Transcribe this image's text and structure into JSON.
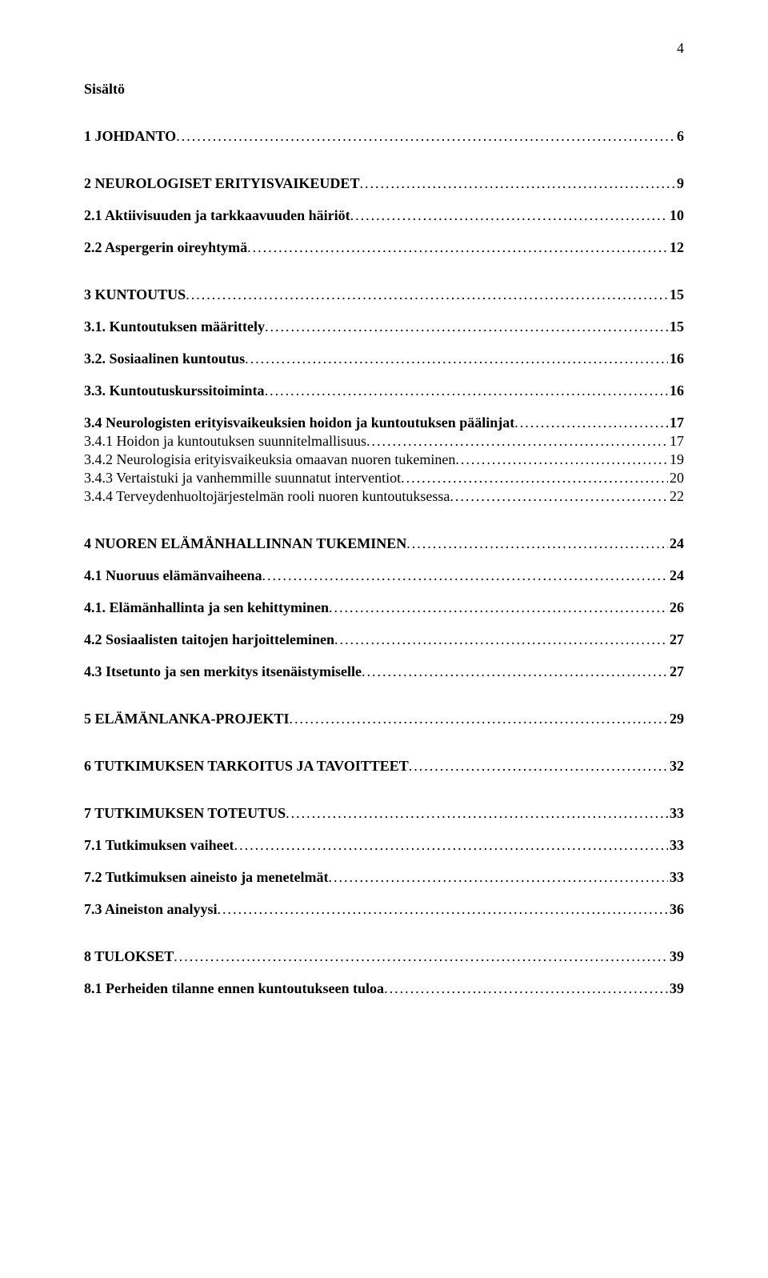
{
  "pageNumber": "4",
  "title": "Sisältö",
  "entries": [
    {
      "label": "1 JOHDANTO",
      "page": "6",
      "bold": true,
      "gap": "none",
      "level": 1
    },
    {
      "label": "2 NEUROLOGISET ERITYISVAIKEUDET",
      "page": "9",
      "bold": true,
      "gap": "large",
      "level": 1
    },
    {
      "label": "2.1 Aktiivisuuden ja tarkkaavuuden häiriöt",
      "page": "10",
      "bold": true,
      "gap": "med",
      "level": 2
    },
    {
      "label": "2.2 Aspergerin oireyhtymä",
      "page": "12",
      "bold": true,
      "gap": "med",
      "level": 2
    },
    {
      "label": "3 KUNTOUTUS",
      "page": "15",
      "bold": true,
      "gap": "large",
      "level": 1
    },
    {
      "label": "3.1. Kuntoutuksen määrittely",
      "page": "15",
      "bold": true,
      "gap": "med",
      "level": 2
    },
    {
      "label": "3.2. Sosiaalinen kuntoutus",
      "page": "16",
      "bold": true,
      "gap": "med",
      "level": 2
    },
    {
      "label": "3.3. Kuntoutuskurssitoiminta",
      "page": "16",
      "bold": true,
      "gap": "med",
      "level": 2
    },
    {
      "label": "3.4 Neurologisten erityisvaikeuksien hoidon ja kuntoutuksen päälinjat",
      "page": "17",
      "bold": true,
      "gap": "med",
      "level": 2
    },
    {
      "label": "3.4.1 Hoidon ja kuntoutuksen suunnitelmallisuus",
      "page": "17",
      "bold": false,
      "gap": "small",
      "level": 3
    },
    {
      "label": "3.4.2 Neurologisia erityisvaikeuksia omaavan nuoren tukeminen",
      "page": "19",
      "bold": false,
      "gap": "small",
      "level": 3
    },
    {
      "label": "3.4.3 Vertaistuki ja vanhemmille suunnatut interventiot",
      "page": "20",
      "bold": false,
      "gap": "small",
      "level": 3
    },
    {
      "label": "3.4.4 Terveydenhuoltojärjestelmän rooli nuoren kuntoutuksessa",
      "page": "22",
      "bold": false,
      "gap": "small",
      "level": 3
    },
    {
      "label": "4 NUOREN ELÄMÄNHALLINNAN TUKEMINEN",
      "page": "24",
      "bold": true,
      "gap": "large",
      "level": 1
    },
    {
      "label": "4.1 Nuoruus elämänvaiheena",
      "page": "24",
      "bold": true,
      "gap": "med",
      "level": 2
    },
    {
      "label": "4.1. Elämänhallinta ja sen kehittyminen",
      "page": "26",
      "bold": true,
      "gap": "med",
      "level": 2
    },
    {
      "label": "4.2 Sosiaalisten taitojen harjoitteleminen",
      "page": "27",
      "bold": true,
      "gap": "med",
      "level": 2
    },
    {
      "label": "4.3 Itsetunto ja sen merkitys itsenäistymiselle",
      "page": "27",
      "bold": true,
      "gap": "med",
      "level": 2
    },
    {
      "label": "5 ELÄMÄNLANKA-PROJEKTI",
      "page": "29",
      "bold": true,
      "gap": "large",
      "level": 1
    },
    {
      "label": "6 TUTKIMUKSEN TARKOITUS JA TAVOITTEET",
      "page": "32",
      "bold": true,
      "gap": "large",
      "level": 1
    },
    {
      "label": "7 TUTKIMUKSEN TOTEUTUS",
      "page": "33",
      "bold": true,
      "gap": "large",
      "level": 1
    },
    {
      "label": "7.1 Tutkimuksen vaiheet",
      "page": "33",
      "bold": true,
      "gap": "med",
      "level": 2
    },
    {
      "label": "7.2 Tutkimuksen aineisto ja menetelmät",
      "page": "33",
      "bold": true,
      "gap": "med",
      "level": 2
    },
    {
      "label": "7.3 Aineiston analyysi",
      "page": "36",
      "bold": true,
      "gap": "med",
      "level": 2
    },
    {
      "label": "8 TULOKSET",
      "page": "39",
      "bold": true,
      "gap": "large",
      "level": 1
    },
    {
      "label": "8.1 Perheiden tilanne ennen kuntoutukseen tuloa",
      "page": "39",
      "bold": true,
      "gap": "med",
      "level": 2
    }
  ]
}
